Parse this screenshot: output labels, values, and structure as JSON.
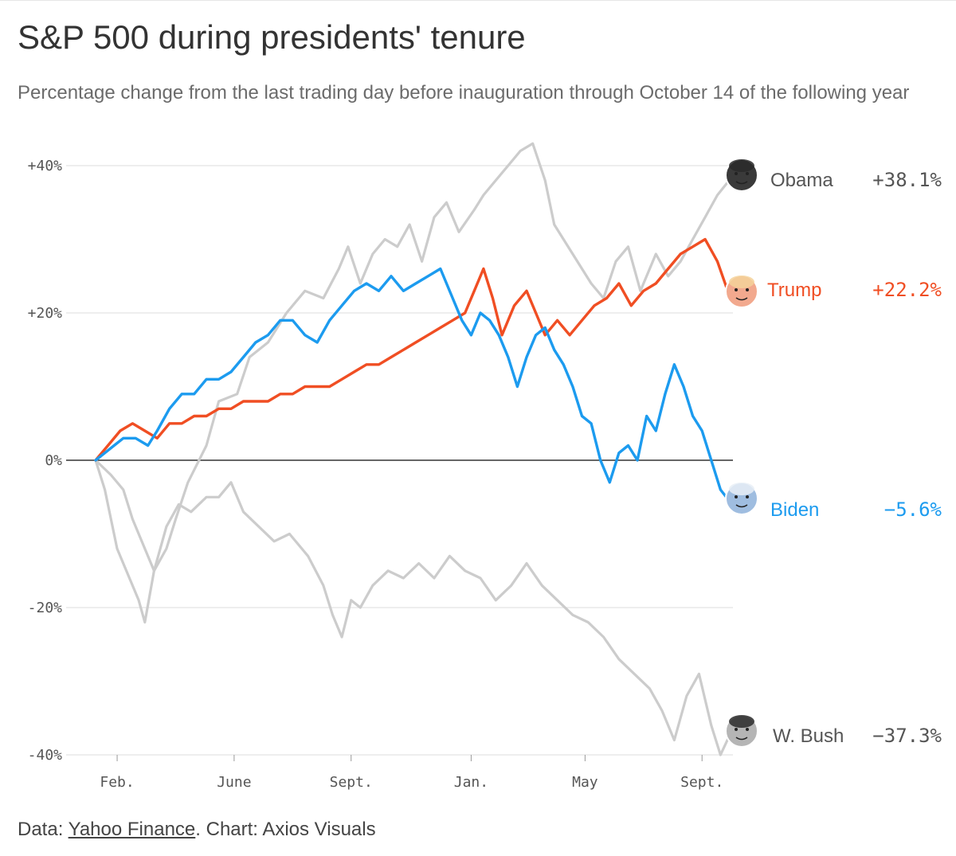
{
  "colors": {
    "obama": "#cccccc",
    "bush": "#cccccc",
    "trump": "#f04e23",
    "biden": "#1c9bef",
    "grid": "#e3e3e3",
    "zero_line": "#333333",
    "label_gray": "#555555"
  },
  "footer": {
    "data_prefix": "Data: ",
    "source_name": "Yahoo Finance",
    "chart_credit": ". Chart: Axios Visuals"
  },
  "chart_data": {
    "type": "line",
    "title": "S&P 500 during presidents' tenure",
    "subtitle": "Percentage change from the last trading day before inauguration through October 14 of the following year",
    "xlabel": "",
    "ylabel": "",
    "x_unit": "months after inauguration",
    "xlim": [
      0,
      20.6
    ],
    "ylim": [
      -42,
      44
    ],
    "yticks": [
      {
        "value": 40,
        "label": "+40%"
      },
      {
        "value": 20,
        "label": "+20%"
      },
      {
        "value": 0,
        "label": "0%"
      },
      {
        "value": -20,
        "label": "-20%"
      },
      {
        "value": -40,
        "label": "-40%"
      }
    ],
    "xticks": [
      {
        "value": 0.7,
        "label": "Feb."
      },
      {
        "value": 4.5,
        "label": "June"
      },
      {
        "value": 8.3,
        "label": "Sept."
      },
      {
        "value": 12.2,
        "label": "Jan."
      },
      {
        "value": 15.9,
        "label": "May"
      },
      {
        "value": 19.7,
        "label": "Sept."
      }
    ],
    "series": [
      {
        "key": "obama",
        "name": "Obama",
        "final_label": "+38.1%",
        "x": [
          0,
          0.3,
          0.7,
          1.0,
          1.4,
          1.6,
          1.9,
          2.3,
          2.6,
          3.0,
          3.6,
          4.0,
          4.6,
          5.0,
          5.6,
          6.2,
          6.8,
          7.4,
          7.9,
          8.2,
          8.6,
          9.0,
          9.4,
          9.8,
          10.2,
          10.6,
          11.0,
          11.4,
          11.8,
          12.3,
          12.6,
          13.0,
          13.4,
          13.8,
          14.2,
          14.6,
          14.9,
          15.2,
          15.5,
          15.8,
          16.1,
          16.5,
          16.9,
          17.3,
          17.7,
          18.2,
          18.6,
          19.0,
          19.4,
          19.8,
          20.2,
          20.6
        ],
        "values": [
          0,
          -4,
          -12,
          -15,
          -19,
          -22,
          -15,
          -12,
          -8,
          -3,
          2,
          8,
          9,
          14,
          16,
          20,
          23,
          22,
          26,
          29,
          24,
          28,
          30,
          29,
          32,
          27,
          33,
          35,
          31,
          34,
          36,
          38,
          40,
          42,
          43,
          38,
          32,
          30,
          28,
          26,
          24,
          22,
          27,
          29,
          23,
          28,
          25,
          27,
          30,
          33,
          36,
          38.1
        ]
      },
      {
        "key": "bush",
        "name": "W. Bush",
        "final_label": "−37.3%",
        "x": [
          0,
          0.5,
          0.9,
          1.2,
          1.6,
          1.9,
          2.3,
          2.7,
          3.1,
          3.6,
          4.0,
          4.4,
          4.8,
          5.3,
          5.8,
          6.3,
          6.9,
          7.4,
          7.7,
          8.0,
          8.3,
          8.6,
          9.0,
          9.5,
          10.0,
          10.5,
          11.0,
          11.5,
          12.0,
          12.5,
          13.0,
          13.5,
          14.0,
          14.5,
          15.0,
          15.5,
          16.0,
          16.5,
          17.0,
          17.5,
          18.0,
          18.4,
          18.8,
          19.2,
          19.6,
          20.0,
          20.3,
          20.6
        ],
        "values": [
          0,
          -2,
          -4,
          -8,
          -12,
          -15,
          -9,
          -6,
          -7,
          -5,
          -5,
          -3,
          -7,
          -9,
          -11,
          -10,
          -13,
          -17,
          -21,
          -24,
          -19,
          -20,
          -17,
          -15,
          -16,
          -14,
          -16,
          -13,
          -15,
          -16,
          -19,
          -17,
          -14,
          -17,
          -19,
          -21,
          -22,
          -24,
          -27,
          -29,
          -31,
          -34,
          -38,
          -32,
          -29,
          -36,
          -40,
          -37.3
        ]
      },
      {
        "key": "trump",
        "name": "Trump",
        "final_label": "+22.2%",
        "x": [
          0,
          0.4,
          0.8,
          1.2,
          1.6,
          2.0,
          2.4,
          2.8,
          3.2,
          3.6,
          4.0,
          4.4,
          4.8,
          5.2,
          5.6,
          6.0,
          6.4,
          6.8,
          7.2,
          7.6,
          8.0,
          8.4,
          8.8,
          9.2,
          9.6,
          10.0,
          10.4,
          10.8,
          11.2,
          11.6,
          12.0,
          12.3,
          12.6,
          12.9,
          13.2,
          13.6,
          14.0,
          14.3,
          14.6,
          15.0,
          15.4,
          15.8,
          16.2,
          16.6,
          17.0,
          17.4,
          17.8,
          18.2,
          18.6,
          19.0,
          19.4,
          19.8,
          20.2,
          20.6
        ],
        "values": [
          0,
          2,
          4,
          5,
          4,
          3,
          5,
          5,
          6,
          6,
          7,
          7,
          8,
          8,
          8,
          9,
          9,
          10,
          10,
          10,
          11,
          12,
          13,
          13,
          14,
          15,
          16,
          17,
          18,
          19,
          20,
          23,
          26,
          22,
          17,
          21,
          23,
          20,
          17,
          19,
          17,
          19,
          21,
          22,
          24,
          21,
          23,
          24,
          26,
          28,
          29,
          30,
          27,
          22.2
        ]
      },
      {
        "key": "biden",
        "name": "Biden",
        "final_label": "−5.6%",
        "x": [
          0,
          0.3,
          0.6,
          0.9,
          1.3,
          1.7,
          2.0,
          2.4,
          2.8,
          3.2,
          3.6,
          4.0,
          4.4,
          4.8,
          5.2,
          5.6,
          6.0,
          6.4,
          6.8,
          7.2,
          7.6,
          8.0,
          8.4,
          8.8,
          9.2,
          9.6,
          10.0,
          10.4,
          10.8,
          11.2,
          11.6,
          11.9,
          12.2,
          12.5,
          12.8,
          13.1,
          13.4,
          13.7,
          14.0,
          14.3,
          14.6,
          14.9,
          15.2,
          15.5,
          15.8,
          16.1,
          16.4,
          16.7,
          17.0,
          17.3,
          17.6,
          17.9,
          18.2,
          18.5,
          18.8,
          19.1,
          19.4,
          19.7,
          20.0,
          20.3,
          20.6
        ],
        "values": [
          0,
          1,
          2,
          3,
          3,
          2,
          4,
          7,
          9,
          9,
          11,
          11,
          12,
          14,
          16,
          17,
          19,
          19,
          17,
          16,
          19,
          21,
          23,
          24,
          23,
          25,
          23,
          24,
          25,
          26,
          22,
          19,
          17,
          20,
          19,
          17,
          14,
          10,
          14,
          17,
          18,
          15,
          13,
          10,
          6,
          5,
          0,
          -3,
          1,
          2,
          0,
          6,
          4,
          9,
          13,
          10,
          6,
          4,
          0,
          -4,
          -5.6
        ]
      }
    ]
  }
}
